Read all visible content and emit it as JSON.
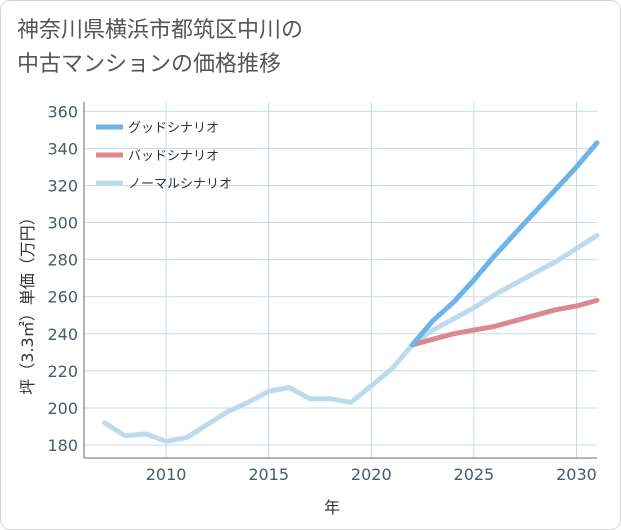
{
  "page": {
    "title_line1": "神奈川県横浜市都筑区中川の",
    "title_line2": "中古マンションの価格推移"
  },
  "colors": {
    "good": "#6cb4ea",
    "bad": "#dd8890",
    "normal": "#bcdcec",
    "grid": "#c9dbe8",
    "axis": "#6a6a6a"
  },
  "chart_data": {
    "type": "line",
    "xlabel": "年",
    "ylabel": "坪（3.3㎡）単価（万円）",
    "xlim": [
      2006,
      2031
    ],
    "ylim": [
      173,
      365
    ],
    "x_ticks": [
      2010,
      2015,
      2020,
      2025,
      2030
    ],
    "y_ticks": [
      180,
      200,
      220,
      240,
      260,
      280,
      300,
      320,
      340,
      360
    ],
    "grid": true,
    "legend_position": "top-left",
    "series": [
      {
        "name": "グッドシナリオ",
        "color": "#6cb4ea",
        "x": [
          2022,
          2023,
          2024,
          2025,
          2026,
          2027,
          2028,
          2029,
          2030,
          2031
        ],
        "y": [
          234,
          247,
          257,
          269,
          282,
          294,
          306,
          318,
          330,
          343
        ]
      },
      {
        "name": "バッドシナリオ",
        "color": "#dd8890",
        "x": [
          2022,
          2023,
          2024,
          2025,
          2026,
          2027,
          2028,
          2029,
          2030,
          2031
        ],
        "y": [
          234,
          237,
          240,
          242,
          244,
          247,
          250,
          253,
          255,
          258
        ]
      },
      {
        "name": "ノーマルシナリオ",
        "color": "#bcdcec",
        "x": [
          2007,
          2008,
          2009,
          2010,
          2011,
          2012,
          2013,
          2014,
          2015,
          2016,
          2017,
          2018,
          2019,
          2020,
          2021,
          2022,
          2023,
          2024,
          2025,
          2026,
          2027,
          2028,
          2029,
          2030,
          2031
        ],
        "y": [
          192,
          185,
          186,
          182,
          184,
          191,
          198,
          203,
          209,
          211,
          205,
          205,
          203,
          212,
          221,
          234,
          242,
          248,
          254,
          261,
          267,
          273,
          279,
          286,
          293
        ]
      }
    ]
  }
}
